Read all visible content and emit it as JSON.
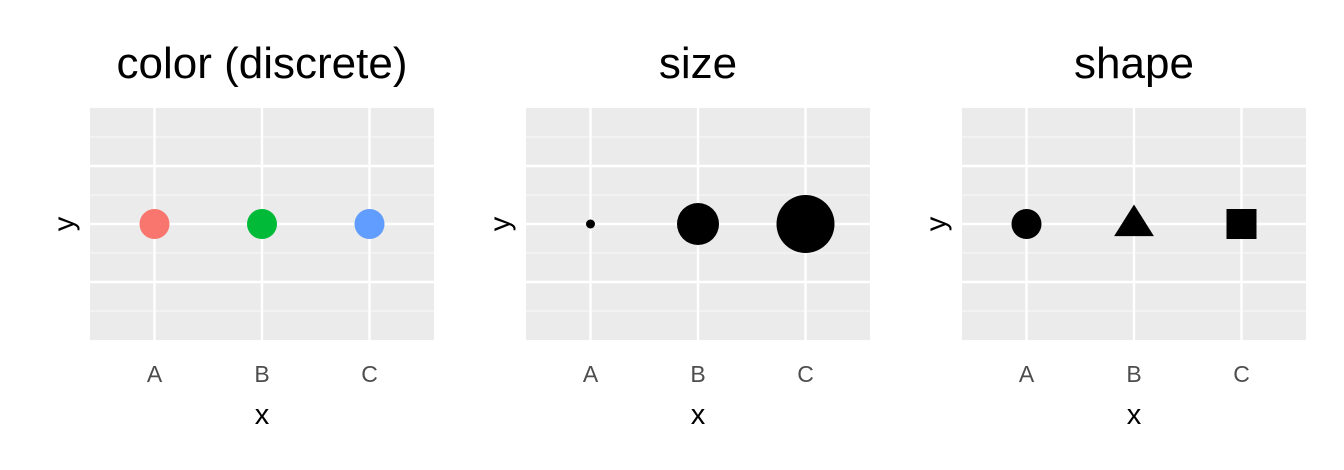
{
  "chart_data": [
    {
      "type": "scatter",
      "title": "color (discrete)",
      "xlabel": "x",
      "ylabel": "y",
      "categories": [
        "A",
        "B",
        "C"
      ],
      "y": [
        0,
        0,
        0
      ],
      "grid": true,
      "aesthetic": "color",
      "point_colors": [
        "#F8766D",
        "#00BA38",
        "#619CFF"
      ],
      "point_sizes": [
        3,
        3,
        3
      ],
      "point_shapes": [
        "circle",
        "circle",
        "circle"
      ]
    },
    {
      "type": "scatter",
      "title": "size",
      "xlabel": "x",
      "ylabel": "y",
      "categories": [
        "A",
        "B",
        "C"
      ],
      "y": [
        0,
        0,
        0
      ],
      "grid": true,
      "aesthetic": "size",
      "point_colors": [
        "#000000",
        "#000000",
        "#000000"
      ],
      "point_sizes": [
        1,
        2,
        3
      ],
      "point_shapes": [
        "circle",
        "circle",
        "circle"
      ]
    },
    {
      "type": "scatter",
      "title": "shape",
      "xlabel": "x",
      "ylabel": "y",
      "categories": [
        "A",
        "B",
        "C"
      ],
      "y": [
        0,
        0,
        0
      ],
      "grid": true,
      "aesthetic": "shape",
      "point_colors": [
        "#000000",
        "#000000",
        "#000000"
      ],
      "point_sizes": [
        3,
        3,
        3
      ],
      "point_shapes": [
        "circle",
        "triangle",
        "square"
      ]
    }
  ],
  "colors": {
    "panel_background": "#EBEBEB",
    "grid_major": "#FFFFFF",
    "grid_minor": "#F5F5F5",
    "tick_text": "#4D4D4D",
    "text": "#000000"
  }
}
